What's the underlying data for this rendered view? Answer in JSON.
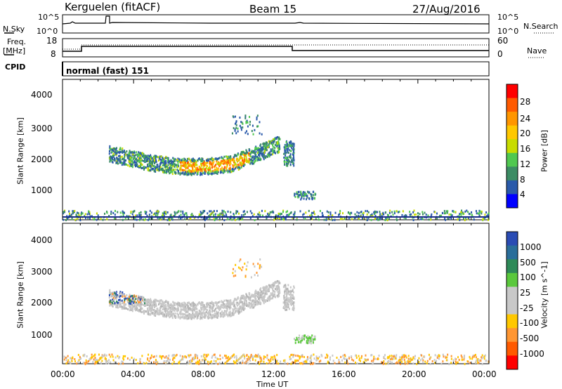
{
  "header": {
    "station": "Kerguelen (fitACF)",
    "beam": "Beam 15",
    "date": "27/Aug/2016"
  },
  "panels": {
    "nsky_label": "N.Sky",
    "nsky_ticks": [
      "10^5",
      "10^0"
    ],
    "nsearch_label": "N.Search",
    "nsearch_ticks": [
      "10^5",
      "10^0"
    ],
    "freq_label_1": "Freq.",
    "freq_label_2": "[MHz]",
    "freq_ticks": [
      "18",
      "8"
    ],
    "nave_label": "Nave",
    "nave_ticks": [
      "60",
      "0"
    ],
    "cpid_label": "CPID",
    "cpid_value": "normal (fast) 151"
  },
  "chart_data": [
    {
      "type": "heatmap",
      "name": "power",
      "ylabel": "Slant Range [km]",
      "yticks": [
        "4000",
        "3000",
        "2000",
        "1000"
      ],
      "ylim": [
        180,
        4600
      ],
      "colorbar_label": "Power [dB]",
      "colorbar_ticks": [
        "28",
        "24",
        "20",
        "16",
        "12",
        "8",
        "4"
      ],
      "colorbar_colors": [
        "#ff0000",
        "#ff5a00",
        "#ff9600",
        "#ffc800",
        "#c8dc00",
        "#50c850",
        "#3c8c64",
        "#2a5aaa",
        "#0000ff"
      ]
    },
    {
      "type": "heatmap",
      "name": "velocity",
      "ylabel": "Slant Range [km]",
      "yticks": [
        "4000",
        "3000",
        "2000",
        "1000"
      ],
      "ylim": [
        180,
        4600
      ],
      "colorbar_label": "Velocity [m s^-1]",
      "colorbar_ticks": [
        "1000",
        "500",
        "100",
        "25",
        "-25",
        "-100",
        "-500",
        "-1000"
      ],
      "colorbar_colors": [
        "#2a4cb4",
        "#2a6e9a",
        "#2e8a58",
        "#5ac83c",
        "#c8c8c8",
        "#c8c8c8",
        "#ffc800",
        "#ff9632",
        "#ff5a00",
        "#ff0000"
      ]
    }
  ],
  "xaxis": {
    "label": "Time UT",
    "ticks": [
      "00:00",
      "04:00",
      "08:00",
      "12:00",
      "16:00",
      "20:00",
      "00:00"
    ]
  }
}
